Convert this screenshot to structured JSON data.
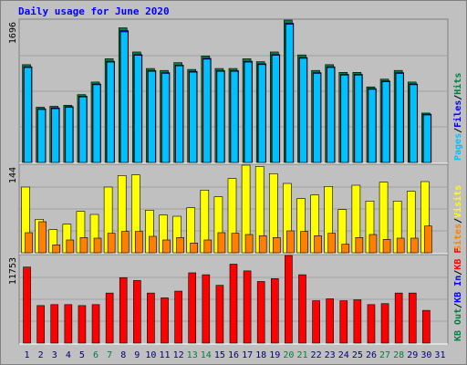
{
  "title": "Daily usage for June 2020",
  "separator": "/",
  "categories": [
    "1",
    "2",
    "3",
    "4",
    "5",
    "6",
    "7",
    "8",
    "9",
    "10",
    "11",
    "12",
    "13",
    "14",
    "15",
    "16",
    "17",
    "18",
    "19",
    "20",
    "21",
    "22",
    "23",
    "24",
    "25",
    "26",
    "27",
    "28",
    "29",
    "30",
    "31"
  ],
  "highlight_categories": [
    5,
    6,
    12,
    13,
    19,
    20,
    26,
    27
  ],
  "highlight_color": "#008040",
  "category_color": "#000080",
  "chart_data": [
    {
      "type": "bar",
      "ylim": [
        0,
        1696
      ],
      "yticks": [
        1696
      ],
      "series": [
        {
          "name": "Hits",
          "color": "#008040",
          "values": [
            1165,
            658,
            669,
            681,
            808,
            958,
            1235,
            1604,
            1316,
            1119,
            1096,
            1189,
            1108,
            1269,
            1119,
            1119,
            1235,
            1200,
            1316,
            1696,
            1281,
            1096,
            1165,
            1073,
            1073,
            900,
            992,
            1096,
            958,
            588,
            0
          ]
        },
        {
          "name": "Files",
          "color": "#0000ff",
          "values": [
            1140,
            640,
            650,
            665,
            790,
            935,
            1205,
            1570,
            1285,
            1095,
            1070,
            1160,
            1085,
            1240,
            1095,
            1095,
            1205,
            1175,
            1285,
            1660,
            1250,
            1070,
            1140,
            1050,
            1050,
            880,
            970,
            1070,
            935,
            575,
            0
          ]
        },
        {
          "name": "Pages",
          "color": "#00c0ff",
          "values": [
            1130,
            630,
            640,
            655,
            780,
            925,
            1195,
            1555,
            1275,
            1085,
            1060,
            1150,
            1075,
            1230,
            1085,
            1085,
            1195,
            1165,
            1275,
            1645,
            1240,
            1060,
            1130,
            1040,
            1040,
            870,
            960,
            1060,
            925,
            565,
            0
          ]
        }
      ]
    },
    {
      "type": "bar",
      "ylim": [
        0,
        144
      ],
      "yticks": [
        144
      ],
      "series": [
        {
          "name": "Visits",
          "color": "#ffff00",
          "values": [
            108,
            55,
            38,
            47,
            68,
            63,
            108,
            127,
            128,
            70,
            62,
            60,
            74,
            103,
            92,
            122,
            144,
            142,
            130,
            114,
            89,
            95,
            109,
            71,
            111,
            85,
            116,
            85,
            101,
            117,
            0
          ]
        },
        {
          "name": "Sites",
          "color": "#ff8000",
          "values": [
            33,
            51,
            13,
            21,
            25,
            24,
            32,
            35,
            35,
            27,
            21,
            25,
            16,
            21,
            33,
            32,
            30,
            28,
            25,
            36,
            35,
            28,
            32,
            14,
            25,
            30,
            22,
            24,
            24,
            44,
            0
          ]
        }
      ]
    },
    {
      "type": "bar",
      "ylim": [
        0,
        11753
      ],
      "yticks": [
        11753
      ],
      "series": [
        {
          "name": "KB F",
          "color": "#ff0000",
          "values": [
            10203,
            5037,
            5166,
            5166,
            5037,
            5166,
            6716,
            8785,
            8396,
            6716,
            6070,
            6974,
            9429,
            9170,
            7750,
            10590,
            9688,
            8267,
            8655,
            11753,
            9170,
            5683,
            5941,
            5683,
            5812,
            5166,
            5295,
            6716,
            6716,
            4391,
            0
          ]
        }
      ],
      "legend_extra": [
        {
          "name": "KB In",
          "color": "#0000ff"
        },
        {
          "name": "KB Out",
          "color": "#008040"
        }
      ]
    }
  ]
}
